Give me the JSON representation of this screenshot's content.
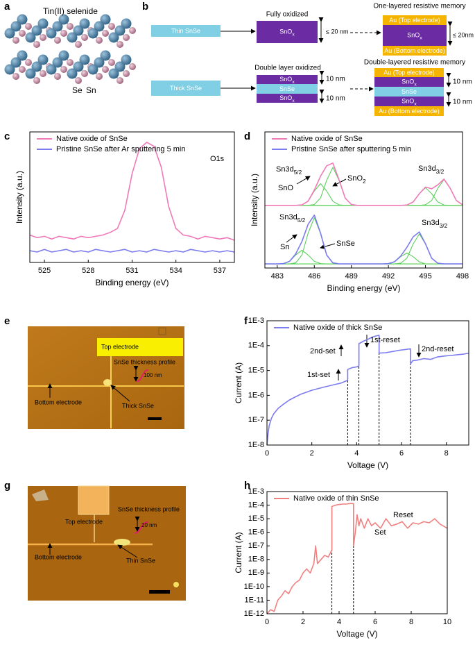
{
  "panel_labels": [
    "a",
    "b",
    "c",
    "d",
    "e",
    "f",
    "g",
    "h"
  ],
  "structure": {
    "title": "Tin(II) selenide",
    "se": "Se",
    "sn": "Sn"
  },
  "schematic": {
    "thin": "Thin SnSe",
    "fully_oxidized": "Fully oxidized",
    "thin_oxide": {
      "base": "SnO",
      "sub": "x"
    },
    "thin_thickness": "≤ 20 nm",
    "one_layer_title": "One-layered resistive memory",
    "one_layer": [
      "Au (Top electrode)",
      {
        "base": "SnO",
        "sub": "x"
      },
      "Au (Bottom electrode)"
    ],
    "one_layer_thickness": "≤ 20nm",
    "thick": "Thick SnSe",
    "double_oxidized": "Double layer oxidized",
    "double_oxide": [
      {
        "base": "SnO",
        "sub": "x"
      },
      "SnSe",
      {
        "base": "SnO",
        "sub": "x"
      }
    ],
    "double_thickness": [
      "10 nm",
      "10 nm"
    ],
    "double_layer_title": "Double-layered resistive memory",
    "double_layer": [
      "Au (Top electrode)",
      {
        "base": "SnO",
        "sub": "x"
      },
      "SnSe",
      {
        "base": "SnO",
        "sub": "x"
      },
      "Au (Bottom electrode)"
    ],
    "double_layer_thickness": [
      "10 nm",
      "10 nm"
    ]
  },
  "micrograph_e": {
    "top_electrode": "Top electrode",
    "profile": "SnSe thickness profile",
    "thickness": "100 nm",
    "bottom_electrode": "Bottom electrode",
    "flake": "Thick SnSe"
  },
  "micrograph_g": {
    "top_electrode": "Top electrode",
    "profile": "SnSe thickness profile",
    "thickness": "20 nm",
    "bottom_electrode": "Bottom electrode",
    "flake": "Thin SnSe"
  },
  "chart_data": [
    {
      "type": "line",
      "xlabel": "Binding energy (eV)",
      "ylabel": "Intensity (a.u.)",
      "legend": "upper left",
      "x": [
        524,
        524.5,
        525,
        525.5,
        526,
        526.5,
        527,
        527.5,
        528,
        528.5,
        529,
        529.5,
        530,
        530.5,
        531,
        531.5,
        532,
        532.5,
        533,
        533.5,
        534,
        534.5,
        535,
        535.5,
        536,
        536.5,
        537,
        537.5,
        538
      ],
      "xlim": [
        524,
        538
      ],
      "xticks": [
        525,
        528,
        531,
        534,
        537
      ],
      "ylim": [
        0,
        10
      ],
      "series": [
        {
          "name": "Native oxide of SnSe",
          "color": "#f07ab8",
          "values": [
            2.1,
            1.9,
            2.0,
            1.8,
            2.0,
            1.9,
            1.8,
            2.0,
            1.9,
            2.0,
            2.1,
            2.3,
            2.6,
            4.0,
            6.8,
            8.7,
            9.2,
            8.9,
            7.3,
            4.3,
            2.6,
            2.1,
            2.0,
            1.8,
            2.0,
            1.9,
            1.8,
            1.9,
            1.7
          ]
        },
        {
          "name": "Pristine SnSe after Ar sputtering 5 min",
          "color": "#7b7bef",
          "values": [
            0.9,
            0.8,
            1.0,
            0.8,
            0.9,
            1.0,
            0.8,
            0.9,
            0.8,
            1.0,
            0.9,
            0.8,
            0.9,
            1.0,
            0.8,
            0.9,
            0.8,
            1.0,
            0.9,
            0.8,
            0.9,
            0.8,
            1.0,
            0.9,
            0.8,
            0.9,
            0.8,
            0.9,
            0.8
          ]
        }
      ],
      "annotations": [
        {
          "text": "O1s"
        }
      ]
    },
    {
      "type": "line",
      "xlabel": "Binding energy (eV)",
      "ylabel": "Intensity (a.u.)",
      "legend": "upper left",
      "x": [
        482,
        482.5,
        483,
        483.5,
        484,
        484.5,
        485,
        485.5,
        486,
        486.5,
        487,
        487.5,
        488,
        488.5,
        489,
        489.5,
        490,
        490.5,
        491,
        491.5,
        492,
        492.5,
        493,
        493.5,
        494,
        494.5,
        495,
        495.5,
        496,
        496.5,
        497,
        497.5,
        498
      ],
      "xlim": [
        482,
        498
      ],
      "xticks": [
        483,
        486,
        489,
        492,
        495,
        498
      ],
      "ylim": [
        0,
        10
      ],
      "series": [
        {
          "name": "Native oxide of SnSe",
          "color": "#f07ab8",
          "values": [
            4.6,
            4.6,
            4.6,
            4.6,
            4.6,
            4.6,
            4.64,
            4.91,
            5.73,
            6.74,
            7.51,
            7.71,
            6.49,
            5.14,
            4.67,
            4.6,
            4.6,
            4.6,
            4.6,
            4.6,
            4.6,
            4.6,
            4.6,
            4.63,
            4.85,
            5.46,
            5.95,
            5.82,
            6.11,
            6.53,
            5.86,
            4.96,
            4.65
          ]
        },
        {
          "name": "Pristine SnSe after sputtering 5 min",
          "color": "#7b7bef",
          "values": [
            0.3,
            0.3,
            0.3,
            0.32,
            0.49,
            1.04,
            1.95,
            3.21,
            3.89,
            2.57,
            0.95,
            0.38,
            0.3,
            0.3,
            0.3,
            0.3,
            0.3,
            0.3,
            0.3,
            0.3,
            0.32,
            0.46,
            0.88,
            1.52,
            2.29,
            2.65,
            1.78,
            0.72,
            0.35,
            0.3,
            0.3,
            0.3,
            0.3
          ]
        },
        {
          "color": "#5ccf5c",
          "values": [
            4.6,
            4.6,
            4.6,
            4.6,
            4.6,
            4.6,
            4.64,
            4.91,
            5.66,
            6.2,
            5.66,
            4.91,
            4.64,
            4.6,
            4.6,
            4.6,
            4.6,
            4.6,
            4.6,
            4.6,
            4.6,
            4.6,
            4.6,
            4.6,
            4.6,
            4.6,
            4.6,
            4.6,
            4.6,
            4.6,
            4.6,
            4.6,
            4.6
          ]
        },
        {
          "color": "#5ccf5c",
          "values": [
            4.6,
            4.6,
            4.6,
            4.6,
            4.6,
            4.6,
            4.6,
            4.6,
            4.67,
            5.14,
            6.45,
            7.4,
            6.45,
            5.14,
            4.67,
            4.6,
            4.6,
            4.6,
            4.6,
            4.6,
            4.6,
            4.6,
            4.6,
            4.6,
            4.6,
            4.6,
            4.6,
            4.6,
            4.6,
            4.6,
            4.6,
            4.6,
            4.6
          ]
        },
        {
          "color": "#5ccf5c",
          "values": [
            4.6,
            4.6,
            4.6,
            4.6,
            4.6,
            4.6,
            4.6,
            4.6,
            4.6,
            4.6,
            4.6,
            4.6,
            4.6,
            4.6,
            4.6,
            4.6,
            4.6,
            4.6,
            4.6,
            4.6,
            4.6,
            4.6,
            4.6,
            4.63,
            4.85,
            5.46,
            5.9,
            5.46,
            4.85,
            4.63,
            4.6,
            4.6,
            4.6
          ]
        },
        {
          "color": "#5ccf5c",
          "values": [
            4.6,
            4.6,
            4.6,
            4.6,
            4.6,
            4.6,
            4.6,
            4.6,
            4.6,
            4.6,
            4.6,
            4.6,
            4.6,
            4.6,
            4.6,
            4.6,
            4.6,
            4.6,
            4.6,
            4.6,
            4.6,
            4.6,
            4.6,
            4.6,
            4.6,
            4.6,
            4.65,
            4.96,
            5.86,
            6.5,
            5.86,
            4.96,
            4.65
          ]
        },
        {
          "color": "#5ccf5c",
          "values": [
            0.3,
            0.3,
            0.3,
            0.32,
            0.49,
            0.96,
            1.3,
            0.96,
            0.49,
            0.32,
            0.3,
            0.3,
            0.3,
            0.3,
            0.3,
            0.3,
            0.3,
            0.3,
            0.3,
            0.3,
            0.3,
            0.3,
            0.3,
            0.3,
            0.3,
            0.3,
            0.3,
            0.3,
            0.3,
            0.3,
            0.3,
            0.3,
            0.3
          ]
        },
        {
          "color": "#5ccf5c",
          "values": [
            0.3,
            0.3,
            0.3,
            0.3,
            0.3,
            0.38,
            0.95,
            2.55,
            3.7,
            2.55,
            0.95,
            0.38,
            0.3,
            0.3,
            0.3,
            0.3,
            0.3,
            0.3,
            0.3,
            0.3,
            0.3,
            0.3,
            0.3,
            0.3,
            0.3,
            0.3,
            0.3,
            0.3,
            0.3,
            0.3,
            0.3,
            0.3,
            0.3
          ]
        },
        {
          "color": "#5ccf5c",
          "values": [
            0.3,
            0.3,
            0.3,
            0.3,
            0.3,
            0.3,
            0.3,
            0.3,
            0.3,
            0.3,
            0.3,
            0.3,
            0.3,
            0.3,
            0.3,
            0.3,
            0.3,
            0.3,
            0.3,
            0.3,
            0.3,
            0.45,
            0.83,
            1.1,
            0.83,
            0.45,
            0.3,
            0.3,
            0.3,
            0.3,
            0.3,
            0.3,
            0.3
          ]
        },
        {
          "color": "#5ccf5c",
          "values": [
            0.3,
            0.3,
            0.3,
            0.3,
            0.3,
            0.3,
            0.3,
            0.3,
            0.3,
            0.3,
            0.3,
            0.3,
            0.3,
            0.3,
            0.3,
            0.3,
            0.3,
            0.3,
            0.3,
            0.3,
            0.3,
            0.3,
            0.35,
            0.72,
            1.76,
            2.5,
            1.76,
            0.72,
            0.35,
            0.3,
            0.3,
            0.3,
            0.3
          ]
        }
      ],
      "annotations": [
        {
          "text": "Sn3d",
          "sub": "5/2"
        },
        {
          "text": "SnO"
        },
        {
          "text": "SnO",
          "sub": "2"
        },
        {
          "text": "Sn3d",
          "sub": "3/2"
        },
        {
          "text": "Sn3d",
          "sub": "5/2"
        },
        {
          "text": "Sn"
        },
        {
          "text": "SnSe"
        },
        {
          "text": "Sn3d",
          "sub": "3/2"
        }
      ]
    },
    {
      "type": "line",
      "xlabel": "Voltage (V)",
      "ylabel": "Current (A)",
      "legend": "upper left",
      "log_y": true,
      "x": [
        0,
        0.05,
        0.1,
        0.2,
        0.3,
        0.5,
        0.75,
        1,
        1.5,
        2,
        2.5,
        3,
        3.3,
        3.6,
        3.6,
        3.8,
        4.0,
        4.1,
        4.1,
        4.3,
        4.5,
        4.7,
        4.9,
        5.0,
        5.0,
        5.3,
        5.6,
        5.9,
        6.2,
        6.4,
        6.4,
        6.5,
        6.7,
        7.0,
        7.3,
        7.6,
        7.9,
        8.2,
        8.5,
        8.8,
        9
      ],
      "xlim": [
        0,
        9
      ],
      "xticks": [
        0,
        2,
        4,
        6,
        8
      ],
      "ylim": [
        1e-08,
        0.001
      ],
      "yticks": [
        {
          "value": 1e-08,
          "label": "1E-8"
        },
        {
          "value": 1e-07,
          "label": "1E-7"
        },
        {
          "value": 1e-06,
          "label": "1E-6"
        },
        {
          "value": 1e-05,
          "label": "1E-5"
        },
        {
          "value": 0.0001,
          "label": "1E-4"
        },
        {
          "value": 0.001,
          "label": "1E-3"
        }
      ],
      "series": [
        {
          "name": "Native oxide of thick SnSe",
          "color": "#7b7bef",
          "values": [
            1e-08,
            3e-08,
            6e-08,
            1.2e-07,
            1.8e-07,
            3e-07,
            4.5e-07,
            6.5e-07,
            1.1e-06,
            1.6e-06,
            2.1e-06,
            2.7e-06,
            3.1e-06,
            4e-06,
            1.1e-05,
            1.3e-05,
            1.4e-05,
            1.5e-05,
            0.00012,
            0.00015,
            0.00018,
            0.00022,
            0.00025,
            0.00026,
            5e-05,
            5.2e-05,
            5.8e-05,
            6.5e-05,
            7e-05,
            7.5e-05,
            1.8e-05,
            2.5e-05,
            2.6e-05,
            3e-05,
            2.8e-05,
            3.5e-05,
            3.8e-05,
            4e-05,
            4.3e-05,
            4.6e-05,
            5e-05
          ]
        }
      ],
      "vlines": [
        3.6,
        4.1,
        5.0,
        6.4
      ],
      "annotations": [
        {
          "text": "1st-set"
        },
        {
          "text": "2nd-set"
        },
        {
          "text": "1st-reset"
        },
        {
          "text": "2nd-reset"
        }
      ]
    },
    {
      "type": "line",
      "xlabel": "Voltage (V)",
      "ylabel": "Current (A)",
      "legend": "upper left",
      "log_y": true,
      "x": [
        0,
        0.2,
        0.4,
        0.6,
        0.8,
        1.0,
        1.2,
        1.4,
        1.6,
        1.8,
        2.0,
        2.2,
        2.4,
        2.6,
        2.7,
        2.8,
        3.0,
        3.2,
        3.4,
        3.6,
        3.6,
        3.8,
        4.0,
        4.2,
        4.4,
        4.6,
        4.8,
        4.8,
        4.9,
        5.0,
        5.1,
        5.2,
        5.4,
        5.6,
        5.8,
        6.0,
        6.3,
        6.6,
        6.9,
        7.2,
        7.5,
        7.8,
        8.1,
        8.4,
        8.7,
        9.0,
        9.3,
        9.6,
        10
      ],
      "xlim": [
        0,
        10
      ],
      "xticks": [
        0,
        2,
        4,
        6,
        8,
        10
      ],
      "ylim": [
        1e-12,
        0.001
      ],
      "yticks": [
        {
          "value": 1e-12,
          "label": "1E-12"
        },
        {
          "value": 1e-11,
          "label": "1E-11"
        },
        {
          "value": 1e-10,
          "label": "1E-10"
        },
        {
          "value": 1e-09,
          "label": "1E-9"
        },
        {
          "value": 1e-08,
          "label": "1E-8"
        },
        {
          "value": 1e-07,
          "label": "1E-7"
        },
        {
          "value": 1e-06,
          "label": "1E-6"
        },
        {
          "value": 1e-05,
          "label": "1E-5"
        },
        {
          "value": 0.0001,
          "label": "1E-4"
        },
        {
          "value": 0.001,
          "label": "1E-3"
        }
      ],
      "series": [
        {
          "name": "Native oxide of thin SnSe",
          "color": "#f08080",
          "values": [
            1e-12,
            2e-12,
            1.5e-12,
            1e-11,
            2e-11,
            5e-11,
            3e-11,
            1e-10,
            2e-10,
            3e-10,
            1e-09,
            2e-09,
            1e-09,
            5e-09,
            1e-07,
            5e-09,
            1e-08,
            2e-08,
            1.5e-08,
            5e-08,
            8e-05,
            0.0001,
            0.00011,
            0.00012,
            0.00012,
            0.00013,
            0.00013,
            1e-07,
            1e-06,
            2e-05,
            3e-06,
            1e-05,
            2e-06,
            1e-05,
            3e-06,
            5e-06,
            2e-06,
            1e-05,
            3e-06,
            4e-06,
            6e-06,
            2e-06,
            5e-06,
            4e-06,
            6e-06,
            5e-06,
            1e-05,
            4e-06,
            2e-06
          ]
        }
      ],
      "vlines": [
        3.6,
        4.8
      ],
      "annotations": [
        {
          "text": "Set"
        },
        {
          "text": "Reset"
        }
      ]
    }
  ]
}
